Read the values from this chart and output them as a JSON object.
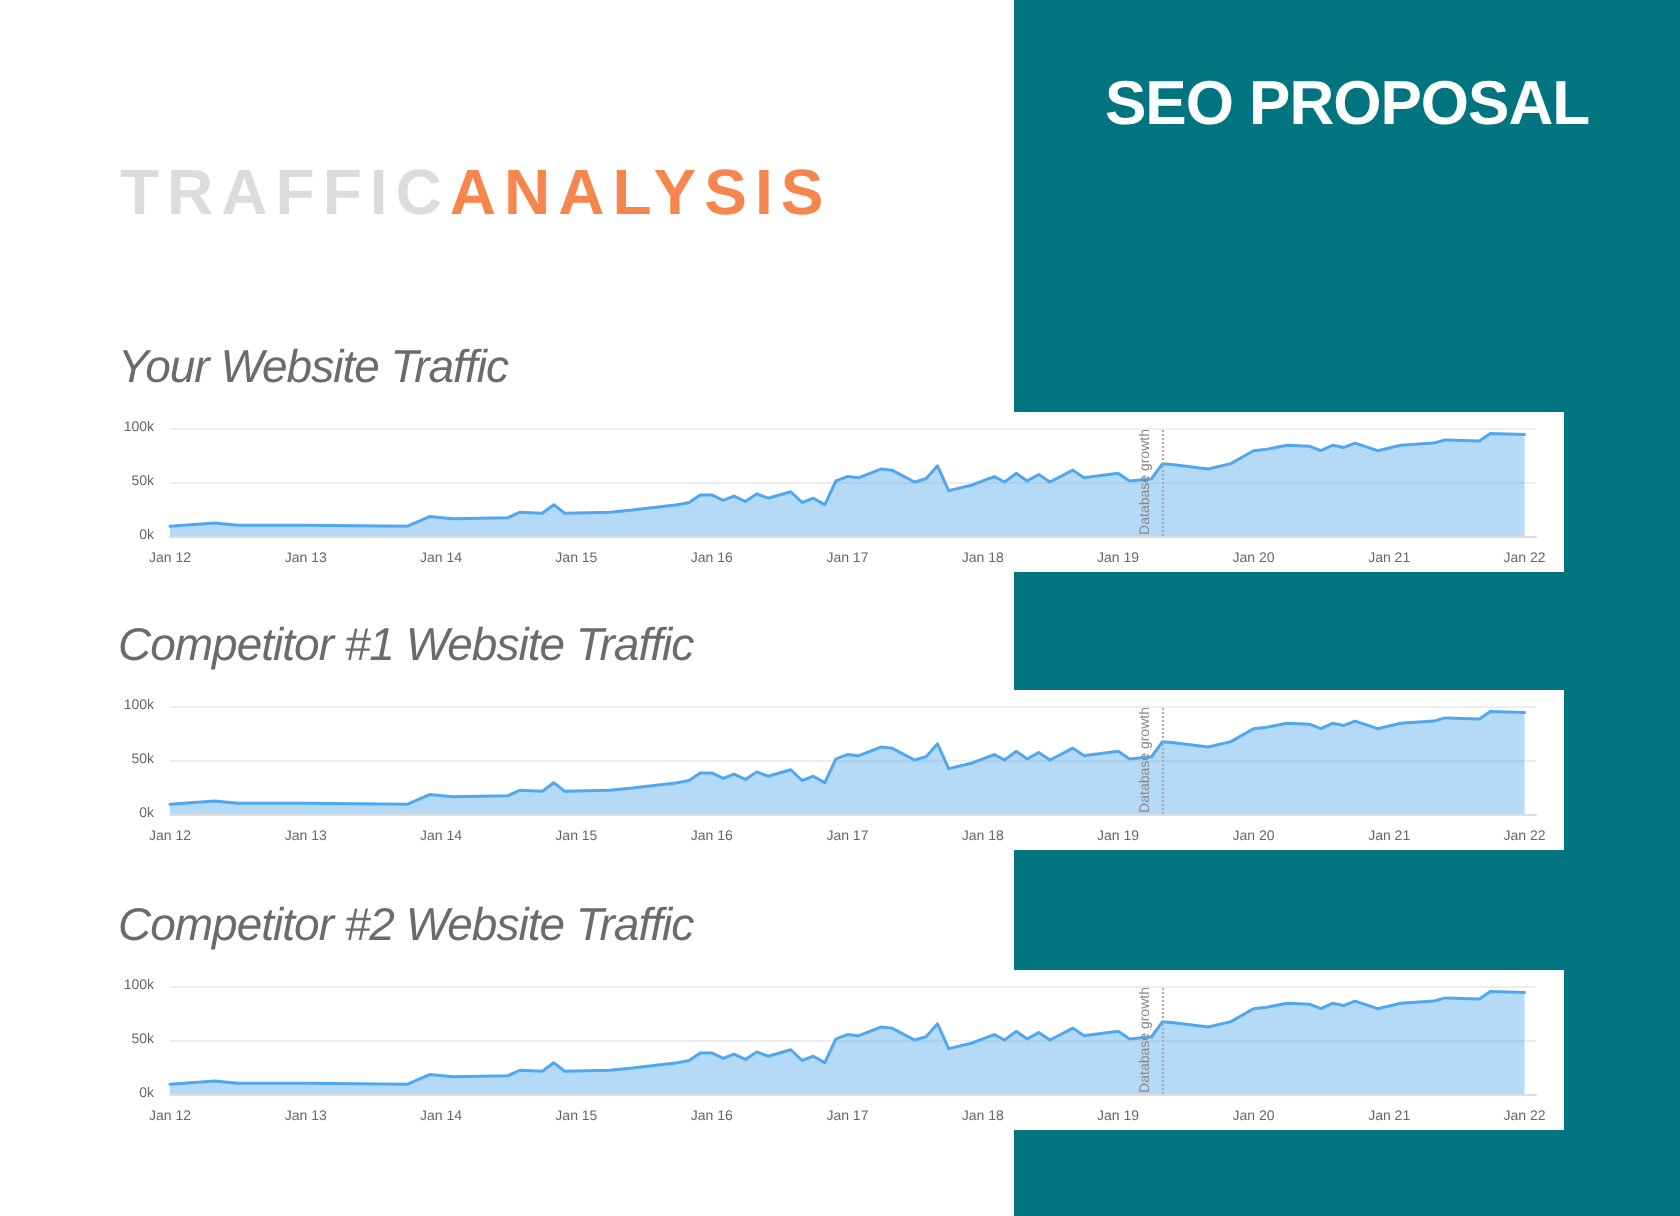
{
  "chart_data": [
    {
      "type": "area",
      "title": "Your Website Traffic",
      "annotations": [
        "SEO PROPOSAL",
        "TRAFFIC",
        "ANALYSIS"
      ],
      "x": [
        "2012-01",
        "2012-05",
        "2012-07",
        "2013-01",
        "2013-10",
        "2013-12",
        "2014-02",
        "2014-07",
        "2014-08",
        "2014-10",
        "2014-11",
        "2014-12",
        "2015-04",
        "2015-06",
        "2015-10",
        "2015-11",
        "2015-12",
        "2016-01",
        "2016-02",
        "2016-03",
        "2016-04",
        "2016-05",
        "2016-06",
        "2016-08",
        "2016-09",
        "2016-10",
        "2016-11",
        "2016-12",
        "2017-01",
        "2017-02",
        "2017-04",
        "2017-05",
        "2017-07",
        "2017-08",
        "2017-09",
        "2017-10",
        "2017-12",
        "2018-01",
        "2018-02",
        "2018-03",
        "2018-04",
        "2018-05",
        "2018-06",
        "2018-07",
        "2018-09",
        "2018-10",
        "2019-01",
        "2019-02",
        "2019-04",
        "2019-05",
        "2019-06",
        "2019-09",
        "2019-11",
        "2020-01",
        "2020-02",
        "2020-04",
        "2020-06",
        "2020-07",
        "2020-08",
        "2020-09",
        "2020-10",
        "2020-12",
        "2021-02",
        "2021-05",
        "2021-06",
        "2021-09",
        "2021-10",
        "2022-01"
      ],
      "series": [
        {
          "color": "#4fa7ef",
          "values": [
            9000,
            12000,
            10000,
            10000,
            9000,
            18000,
            16000,
            17000,
            22000,
            21000,
            29000,
            21000,
            22000,
            24000,
            29000,
            31000,
            38000,
            38000,
            33000,
            37000,
            32000,
            39000,
            35000,
            41000,
            31000,
            35000,
            29000,
            51000,
            55000,
            54000,
            62000,
            61000,
            50000,
            53000,
            65000,
            42000,
            47000,
            51000,
            55000,
            50000,
            58000,
            51000,
            57000,
            50000,
            61000,
            54000,
            58000,
            51000,
            53000,
            67000,
            66000,
            62000,
            67000,
            79000,
            80000,
            84000,
            83000,
            79000,
            84000,
            82000,
            86000,
            79000,
            84000,
            86000,
            89000,
            88000,
            95000,
            94000
          ]
        }
      ],
      "xlim": [
        "2012-01",
        "2022-02"
      ],
      "xticks": [
        {
          "value": "2012-01",
          "label": "Jan 12"
        },
        {
          "value": "2013-01",
          "label": "Jan 13"
        },
        {
          "value": "2014-01",
          "label": "Jan 14"
        },
        {
          "value": "2015-01",
          "label": "Jan 15"
        },
        {
          "value": "2016-01",
          "label": "Jan 16"
        },
        {
          "value": "2017-01",
          "label": "Jan 17"
        },
        {
          "value": "2018-01",
          "label": "Jan 18"
        },
        {
          "value": "2019-01",
          "label": "Jan 19"
        },
        {
          "value": "2020-01",
          "label": "Jan 20"
        },
        {
          "value": "2021-01",
          "label": "Jan 21"
        },
        {
          "value": "2022-01",
          "label": "Jan 22"
        }
      ],
      "ylim": [
        0,
        100000
      ],
      "yticks": [
        {
          "value": 0,
          "label": "0k"
        },
        {
          "value": 50000,
          "label": "50k"
        },
        {
          "value": 100000,
          "label": "100k"
        }
      ],
      "grid": "y",
      "marker": "none",
      "line_style": "solid",
      "ref_lines": [
        {
          "axis": "x",
          "value": "2019-05",
          "label": "Database growth",
          "color": "#aaaaaa",
          "line_style": "dotted"
        }
      ]
    },
    {
      "type": "area",
      "title": "Competitor #1 Website Traffic",
      "x": [
        "2012-01",
        "2012-05",
        "2012-07",
        "2013-01",
        "2013-10",
        "2013-12",
        "2014-02",
        "2014-07",
        "2014-08",
        "2014-10",
        "2014-11",
        "2014-12",
        "2015-04",
        "2015-06",
        "2015-10",
        "2015-11",
        "2015-12",
        "2016-01",
        "2016-02",
        "2016-03",
        "2016-04",
        "2016-05",
        "2016-06",
        "2016-08",
        "2016-09",
        "2016-10",
        "2016-11",
        "2016-12",
        "2017-01",
        "2017-02",
        "2017-04",
        "2017-05",
        "2017-07",
        "2017-08",
        "2017-09",
        "2017-10",
        "2017-12",
        "2018-01",
        "2018-02",
        "2018-03",
        "2018-04",
        "2018-05",
        "2018-06",
        "2018-07",
        "2018-09",
        "2018-10",
        "2019-01",
        "2019-02",
        "2019-04",
        "2019-05",
        "2019-06",
        "2019-09",
        "2019-11",
        "2020-01",
        "2020-02",
        "2020-04",
        "2020-06",
        "2020-07",
        "2020-08",
        "2020-09",
        "2020-10",
        "2020-12",
        "2021-02",
        "2021-05",
        "2021-06",
        "2021-09",
        "2021-10",
        "2022-01"
      ],
      "series": [
        {
          "color": "#4fa7ef",
          "values": [
            9000,
            12000,
            10000,
            10000,
            9000,
            18000,
            16000,
            17000,
            22000,
            21000,
            29000,
            21000,
            22000,
            24000,
            29000,
            31000,
            38000,
            38000,
            33000,
            37000,
            32000,
            39000,
            35000,
            41000,
            31000,
            35000,
            29000,
            51000,
            55000,
            54000,
            62000,
            61000,
            50000,
            53000,
            65000,
            42000,
            47000,
            51000,
            55000,
            50000,
            58000,
            51000,
            57000,
            50000,
            61000,
            54000,
            58000,
            51000,
            53000,
            67000,
            66000,
            62000,
            67000,
            79000,
            80000,
            84000,
            83000,
            79000,
            84000,
            82000,
            86000,
            79000,
            84000,
            86000,
            89000,
            88000,
            95000,
            94000
          ]
        }
      ],
      "xlim": [
        "2012-01",
        "2022-02"
      ],
      "xticks": [
        {
          "value": "2012-01",
          "label": "Jan 12"
        },
        {
          "value": "2013-01",
          "label": "Jan 13"
        },
        {
          "value": "2014-01",
          "label": "Jan 14"
        },
        {
          "value": "2015-01",
          "label": "Jan 15"
        },
        {
          "value": "2016-01",
          "label": "Jan 16"
        },
        {
          "value": "2017-01",
          "label": "Jan 17"
        },
        {
          "value": "2018-01",
          "label": "Jan 18"
        },
        {
          "value": "2019-01",
          "label": "Jan 19"
        },
        {
          "value": "2020-01",
          "label": "Jan 20"
        },
        {
          "value": "2021-01",
          "label": "Jan 21"
        },
        {
          "value": "2022-01",
          "label": "Jan 22"
        }
      ],
      "ylim": [
        0,
        100000
      ],
      "yticks": [
        {
          "value": 0,
          "label": "0k"
        },
        {
          "value": 50000,
          "label": "50k"
        },
        {
          "value": 100000,
          "label": "100k"
        }
      ],
      "grid": "y",
      "marker": "none",
      "line_style": "solid",
      "ref_lines": [
        {
          "axis": "x",
          "value": "2019-05",
          "label": "Database growth",
          "color": "#aaaaaa",
          "line_style": "dotted"
        }
      ]
    },
    {
      "type": "area",
      "title": "Competitor #2 Website Traffic",
      "x": [
        "2012-01",
        "2012-05",
        "2012-07",
        "2013-01",
        "2013-10",
        "2013-12",
        "2014-02",
        "2014-07",
        "2014-08",
        "2014-10",
        "2014-11",
        "2014-12",
        "2015-04",
        "2015-06",
        "2015-10",
        "2015-11",
        "2015-12",
        "2016-01",
        "2016-02",
        "2016-03",
        "2016-04",
        "2016-05",
        "2016-06",
        "2016-08",
        "2016-09",
        "2016-10",
        "2016-11",
        "2016-12",
        "2017-01",
        "2017-02",
        "2017-04",
        "2017-05",
        "2017-07",
        "2017-08",
        "2017-09",
        "2017-10",
        "2017-12",
        "2018-01",
        "2018-02",
        "2018-03",
        "2018-04",
        "2018-05",
        "2018-06",
        "2018-07",
        "2018-09",
        "2018-10",
        "2019-01",
        "2019-02",
        "2019-04",
        "2019-05",
        "2019-06",
        "2019-09",
        "2019-11",
        "2020-01",
        "2020-02",
        "2020-04",
        "2020-06",
        "2020-07",
        "2020-08",
        "2020-09",
        "2020-10",
        "2020-12",
        "2021-02",
        "2021-05",
        "2021-06",
        "2021-09",
        "2021-10",
        "2022-01"
      ],
      "series": [
        {
          "color": "#4fa7ef",
          "values": [
            9000,
            12000,
            10000,
            10000,
            9000,
            18000,
            16000,
            17000,
            22000,
            21000,
            29000,
            21000,
            22000,
            24000,
            29000,
            31000,
            38000,
            38000,
            33000,
            37000,
            32000,
            39000,
            35000,
            41000,
            31000,
            35000,
            29000,
            51000,
            55000,
            54000,
            62000,
            61000,
            50000,
            53000,
            65000,
            42000,
            47000,
            51000,
            55000,
            50000,
            58000,
            51000,
            57000,
            50000,
            61000,
            54000,
            58000,
            51000,
            53000,
            67000,
            66000,
            62000,
            67000,
            79000,
            80000,
            84000,
            83000,
            79000,
            84000,
            82000,
            86000,
            79000,
            84000,
            86000,
            89000,
            88000,
            95000,
            94000
          ]
        }
      ],
      "xlim": [
        "2012-01",
        "2022-02"
      ],
      "xticks": [
        {
          "value": "2012-01",
          "label": "Jan 12"
        },
        {
          "value": "2013-01",
          "label": "Jan 13"
        },
        {
          "value": "2014-01",
          "label": "Jan 14"
        },
        {
          "value": "2015-01",
          "label": "Jan 15"
        },
        {
          "value": "2016-01",
          "label": "Jan 16"
        },
        {
          "value": "2017-01",
          "label": "Jan 17"
        },
        {
          "value": "2018-01",
          "label": "Jan 18"
        },
        {
          "value": "2019-01",
          "label": "Jan 19"
        },
        {
          "value": "2020-01",
          "label": "Jan 20"
        },
        {
          "value": "2021-01",
          "label": "Jan 21"
        },
        {
          "value": "2022-01",
          "label": "Jan 22"
        }
      ],
      "ylim": [
        0,
        100000
      ],
      "yticks": [
        {
          "value": 0,
          "label": "0k"
        },
        {
          "value": 50000,
          "label": "50k"
        },
        {
          "value": 100000,
          "label": "100k"
        }
      ],
      "grid": "y",
      "marker": "none",
      "line_style": "solid",
      "ref_lines": [
        {
          "axis": "x",
          "value": "2019-05",
          "label": "Database growth",
          "color": "#aaaaaa",
          "line_style": "dotted"
        }
      ]
    }
  ]
}
